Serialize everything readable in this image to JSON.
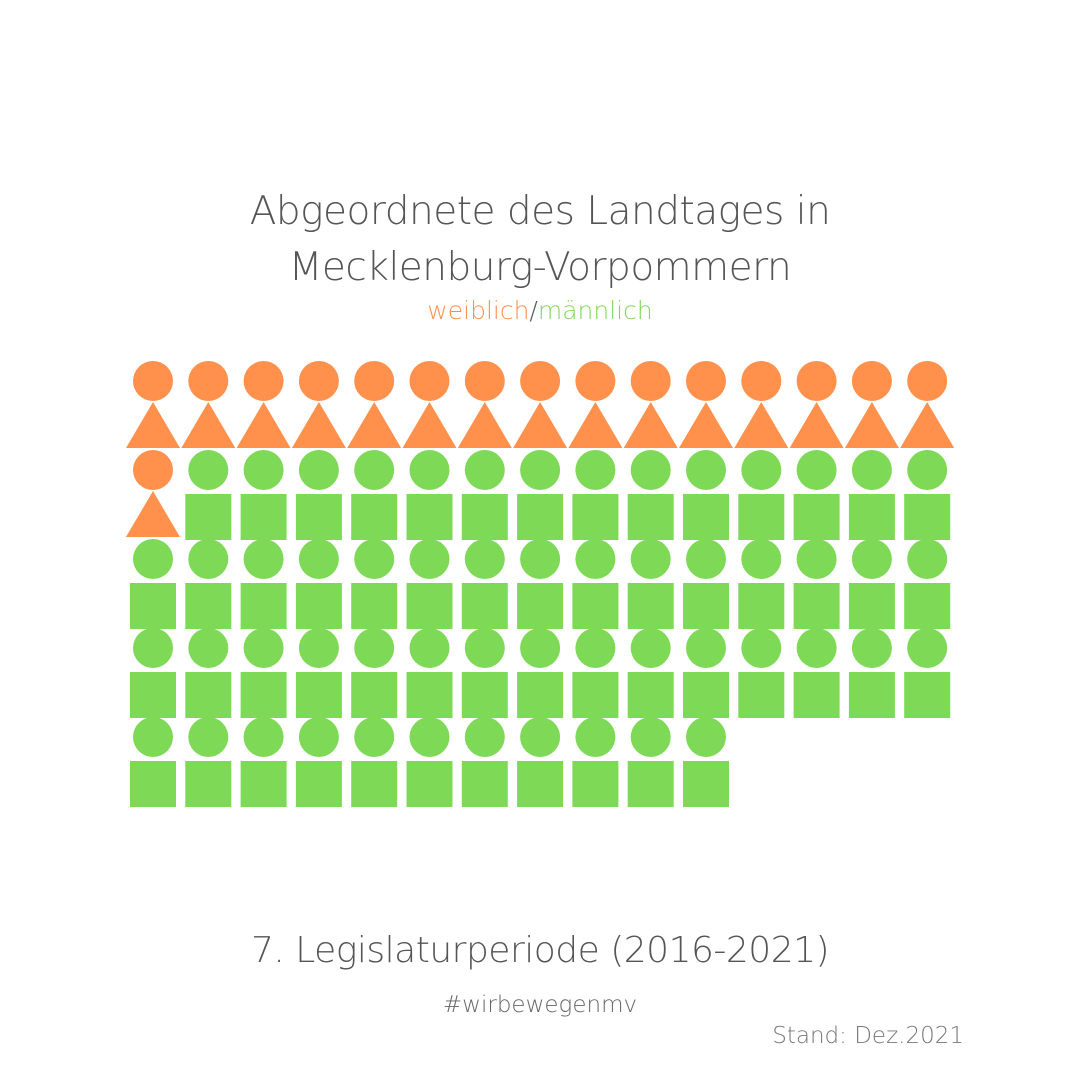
{
  "title": {
    "line1": "Abgeordnete des Landtages in",
    "line2": "Mecklenburg-Vorpommern"
  },
  "legend": {
    "female_label": "weiblich",
    "separator": "/",
    "male_label": "männlich"
  },
  "footer": {
    "period": "7. Legislaturperiode (2016-2021)",
    "hashtag": "#wirbewegenmv",
    "stand": "Stand: Dez.2021"
  },
  "colors": {
    "female": "#ff914d",
    "male": "#7ed957",
    "text": "#555555"
  },
  "chart_data": {
    "type": "pictogram",
    "icons_per_row": 15,
    "series": [
      {
        "name": "weiblich",
        "count": 16,
        "icon": "circle-over-triangle",
        "color": "#ff914d"
      },
      {
        "name": "männlich",
        "count": 55,
        "icon": "circle-over-square",
        "color": "#7ed957"
      }
    ],
    "total": 71
  }
}
